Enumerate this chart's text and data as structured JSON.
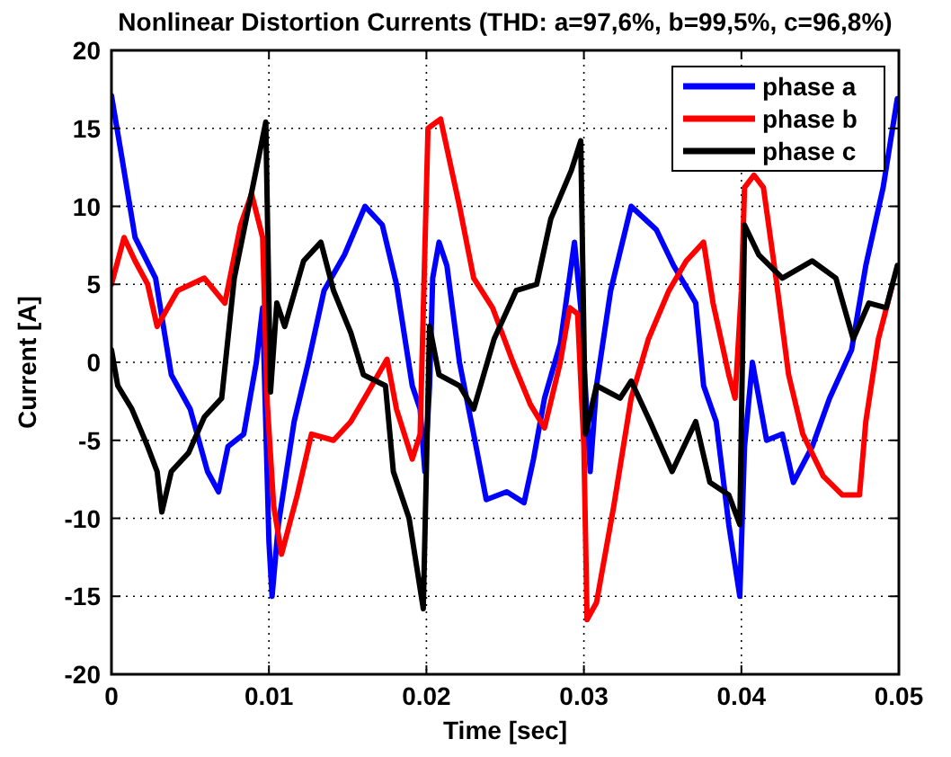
{
  "chart_data": {
    "type": "line",
    "title": "Nonlinear Distortion Currents (THD: a=97,6%, b=99,5%, c=96,8%)",
    "xlabel": "Time [sec]",
    "ylabel": "Current [A]",
    "xlim": [
      0,
      0.05
    ],
    "xticks": [
      0,
      0.01,
      0.02,
      0.03,
      0.04,
      0.05
    ],
    "ylim": [
      -20,
      20
    ],
    "yticks": [
      -20,
      -15,
      -10,
      -5,
      0,
      5,
      10,
      15,
      20
    ],
    "grid": true,
    "legend": "top right",
    "line_style": "solid",
    "marker": "none",
    "series": [
      {
        "name": "phase a",
        "color": "#0000ff",
        "x": [
          0,
          0.0006,
          0.0015,
          0.0028,
          0.0038,
          0.005,
          0.0061,
          0.0068,
          0.0074,
          0.0084,
          0.0092,
          0.0096,
          0.01,
          0.0102,
          0.0106,
          0.0116,
          0.0125,
          0.0135,
          0.0148,
          0.0161,
          0.0172,
          0.0181,
          0.0191,
          0.0196,
          0.0199,
          0.0202,
          0.0204,
          0.0208,
          0.0213,
          0.0221,
          0.023,
          0.0238,
          0.0251,
          0.0262,
          0.0268,
          0.0275,
          0.0285,
          0.0294,
          0.0298,
          0.0304,
          0.0308,
          0.0317,
          0.033,
          0.0346,
          0.0357,
          0.0371,
          0.0376,
          0.0384,
          0.0392,
          0.0399,
          0.0402,
          0.0407,
          0.0416,
          0.0426,
          0.0433,
          0.0445,
          0.0456,
          0.047,
          0.0479,
          0.049,
          0.0499
        ],
        "values": [
          17.1,
          13.5,
          8,
          5.4,
          -0.8,
          -3,
          -7,
          -8.3,
          -5.4,
          -4.6,
          0,
          3.5,
          -11.5,
          -15,
          -10.4,
          -3.8,
          0,
          4.6,
          6.9,
          10,
          8.8,
          5,
          -1.5,
          -3,
          -7,
          -1.5,
          5.4,
          7.7,
          6.2,
          0,
          -4.6,
          -8.8,
          -8.3,
          -9,
          -6.2,
          -2.3,
          1.2,
          7.7,
          3.5,
          -7,
          -1.5,
          4.6,
          10,
          8.5,
          6.2,
          3.8,
          -1.5,
          -3.8,
          -10.4,
          -15,
          -5.4,
          0,
          -5,
          -4.6,
          -7.7,
          -5.4,
          -2.3,
          0.8,
          6.2,
          11.2,
          16.9
        ]
      },
      {
        "name": "phase b",
        "color": "#ff0000",
        "x": [
          0,
          0.0008,
          0.0015,
          0.0023,
          0.0029,
          0.0042,
          0.0059,
          0.0072,
          0.0082,
          0.0089,
          0.0096,
          0.0099,
          0.0103,
          0.0108,
          0.0118,
          0.0127,
          0.0141,
          0.0152,
          0.0163,
          0.0175,
          0.0181,
          0.0191,
          0.0196,
          0.0201,
          0.0209,
          0.0221,
          0.023,
          0.0242,
          0.0255,
          0.0266,
          0.0275,
          0.0285,
          0.0291,
          0.0296,
          0.03,
          0.0302,
          0.0308,
          0.0319,
          0.033,
          0.0341,
          0.0354,
          0.0365,
          0.0376,
          0.0382,
          0.0392,
          0.0396,
          0.04,
          0.0402,
          0.0408,
          0.0414,
          0.0422,
          0.043,
          0.0439,
          0.0452,
          0.0464,
          0.0475,
          0.0479,
          0.0487,
          0.0496
        ],
        "values": [
          5,
          8,
          6.5,
          5,
          2.3,
          4.6,
          5.4,
          3.8,
          8.8,
          10.8,
          8,
          -2.7,
          -9.2,
          -12.3,
          -8.5,
          -4.6,
          -5,
          -3.8,
          -1.9,
          0.2,
          -3,
          -6.2,
          -4.6,
          15,
          15.6,
          10,
          5.4,
          3.5,
          0,
          -2.7,
          -4.2,
          0,
          3.5,
          3.1,
          -5.4,
          -16.5,
          -15.4,
          -9.2,
          -2.3,
          1.5,
          4.6,
          6.5,
          7.7,
          3.8,
          -0.8,
          -2.3,
          4.6,
          11.2,
          12,
          11.2,
          5.4,
          -0.8,
          -4.6,
          -7.3,
          -8.5,
          -8.5,
          -3.8,
          1.5,
          5
        ]
      },
      {
        "name": "phase c",
        "color": "#000000",
        "x": [
          0,
          0.0004,
          0.0013,
          0.0023,
          0.0029,
          0.0032,
          0.0038,
          0.0049,
          0.0059,
          0.007,
          0.0078,
          0.0091,
          0.0098,
          0.0101,
          0.0105,
          0.011,
          0.0122,
          0.0133,
          0.0141,
          0.0152,
          0.016,
          0.0174,
          0.0179,
          0.0189,
          0.0198,
          0.0202,
          0.0208,
          0.0221,
          0.023,
          0.0243,
          0.0257,
          0.027,
          0.0279,
          0.0292,
          0.0298,
          0.0301,
          0.0308,
          0.0323,
          0.033,
          0.0342,
          0.0356,
          0.0371,
          0.038,
          0.0392,
          0.0399,
          0.0402,
          0.0411,
          0.0426,
          0.0445,
          0.046,
          0.0471,
          0.0481,
          0.0492,
          0.0499
        ],
        "values": [
          0.8,
          -1.5,
          -3,
          -5.4,
          -7,
          -9.6,
          -7,
          -5.8,
          -3.5,
          -2.3,
          5.4,
          11.9,
          15.4,
          -1.9,
          3.8,
          2.3,
          6.5,
          7.7,
          4.6,
          1.9,
          -0.8,
          -1.5,
          -7,
          -10,
          -15.8,
          2.3,
          -0.8,
          -1.5,
          -3,
          1.5,
          4.6,
          5,
          9.2,
          12.3,
          14.2,
          -4.6,
          -1.5,
          -2.3,
          -1.2,
          -3.8,
          -7,
          -3.8,
          -7.7,
          -8.5,
          -10.4,
          8.8,
          6.9,
          5.4,
          6.5,
          5.4,
          1.5,
          3.8,
          3.5,
          6.2
        ]
      }
    ]
  }
}
